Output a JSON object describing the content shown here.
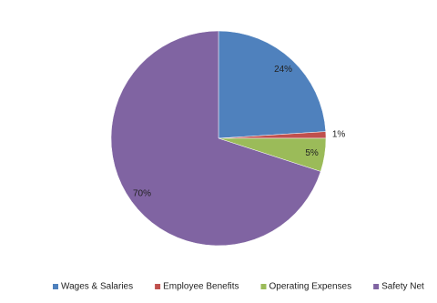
{
  "chart_data": {
    "type": "pie",
    "categories": [
      "Wages & Salaries",
      "Employee Benefits",
      "Operating Expenses",
      "Safety Net"
    ],
    "values": [
      24,
      1,
      5,
      70
    ],
    "value_labels": [
      "24%",
      "1%",
      "5%",
      "70%"
    ],
    "colors": [
      "#4f81bd",
      "#c0504d",
      "#9bbb59",
      "#8064a2"
    ],
    "legend": "bottom"
  }
}
